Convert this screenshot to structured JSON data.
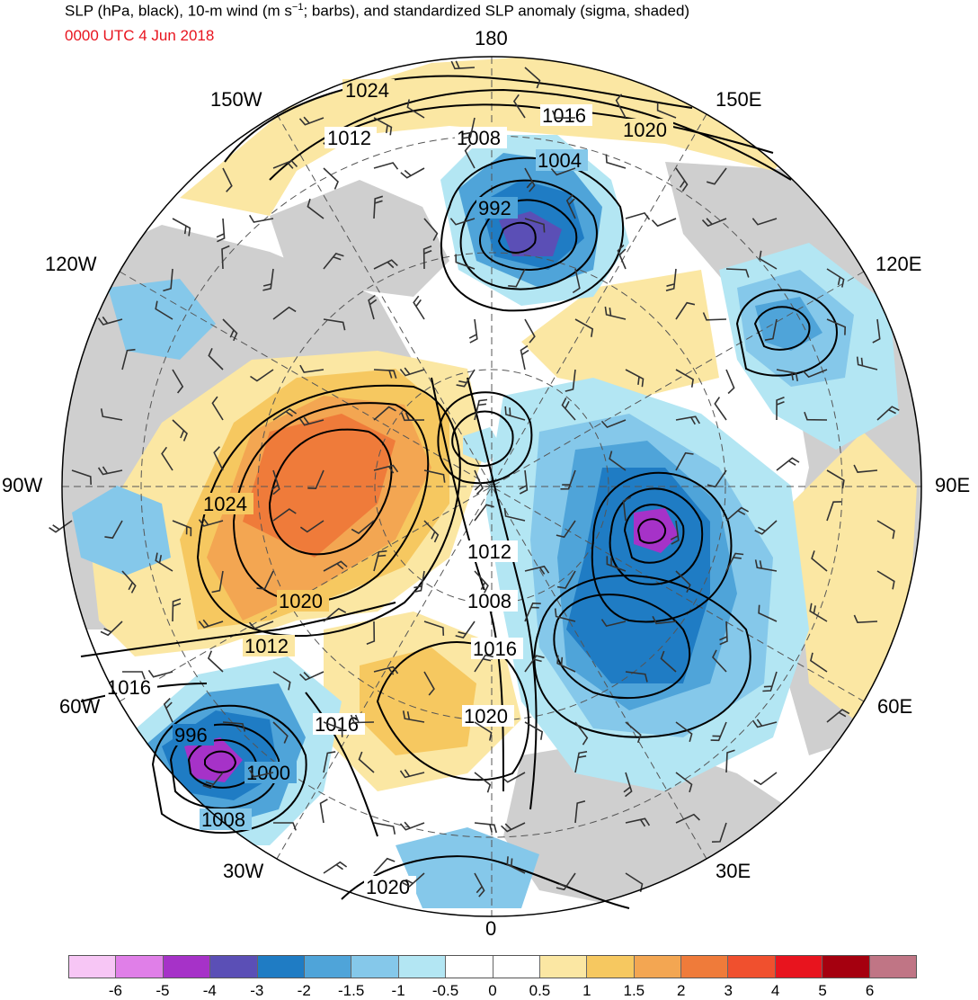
{
  "title": "SLP (hPa, black), 10-m wind (m s",
  "title_sup": "−1",
  "title_rest": "; barbs), and standardized SLP anomaly (sigma, shaded)",
  "subtitle": "0000 UTC 4 Jun 2018",
  "subtitle_color": "#e8141e",
  "longitude_labels": {
    "top": "180",
    "bottom": "0",
    "left": "90W",
    "right": "90E",
    "w150": "150W",
    "e150": "150E",
    "w120": "120W",
    "e120": "120E",
    "w60": "60W",
    "e60": "60E",
    "w30": "30W",
    "e30": "30E"
  },
  "contour_labels": {
    "c1024_top": "1024",
    "c1012_top": "1012",
    "c1008_top": "1008",
    "c1016_top": "1016",
    "c1004": "1004",
    "c1020_top": "1020",
    "c992": "992",
    "c1024_left": "1024",
    "c1012_mid": "1012",
    "c1008_mid": "1008",
    "c1020_left": "1020",
    "c1016_mid": "1016",
    "c1012_left": "1012",
    "c1016_left": "1016",
    "c1016_atl": "1016",
    "c1020_atl": "1020",
    "c996": "996",
    "c1000": "1000",
    "c1008_bot": "1008",
    "c1020_bot": "1020"
  },
  "colorbar": {
    "colors": [
      "#f7c6f5",
      "#e07fe8",
      "#a632c8",
      "#5b4fb6",
      "#1f7cc4",
      "#4fa4d9",
      "#85c8ea",
      "#b3e6f3",
      "#ffffff",
      "#ffffff",
      "#fbe7a3",
      "#f6c860",
      "#f3a652",
      "#ef7b3a",
      "#f0502e",
      "#e8141e",
      "#a5000f",
      "#c07585"
    ],
    "ticks": [
      "-6",
      "-5",
      "-4",
      "-3",
      "-2",
      "-1.5",
      "-1",
      "-0.5",
      "0",
      "0.5",
      "1",
      "1.5",
      "2",
      "3",
      "4",
      "5",
      "6"
    ]
  },
  "colors": {
    "land_gray": "#cfcfcf",
    "neg_05": "#b3e6f3",
    "neg_1": "#85c8ea",
    "neg_15": "#4fa4d9",
    "neg_2": "#1f7cc4",
    "neg_3": "#5b4fb6",
    "neg_4": "#a632c8",
    "pos_05": "#fbe7a3",
    "pos_1": "#f6c860",
    "pos_15": "#f3a652",
    "pos_2": "#ef7b3a"
  }
}
